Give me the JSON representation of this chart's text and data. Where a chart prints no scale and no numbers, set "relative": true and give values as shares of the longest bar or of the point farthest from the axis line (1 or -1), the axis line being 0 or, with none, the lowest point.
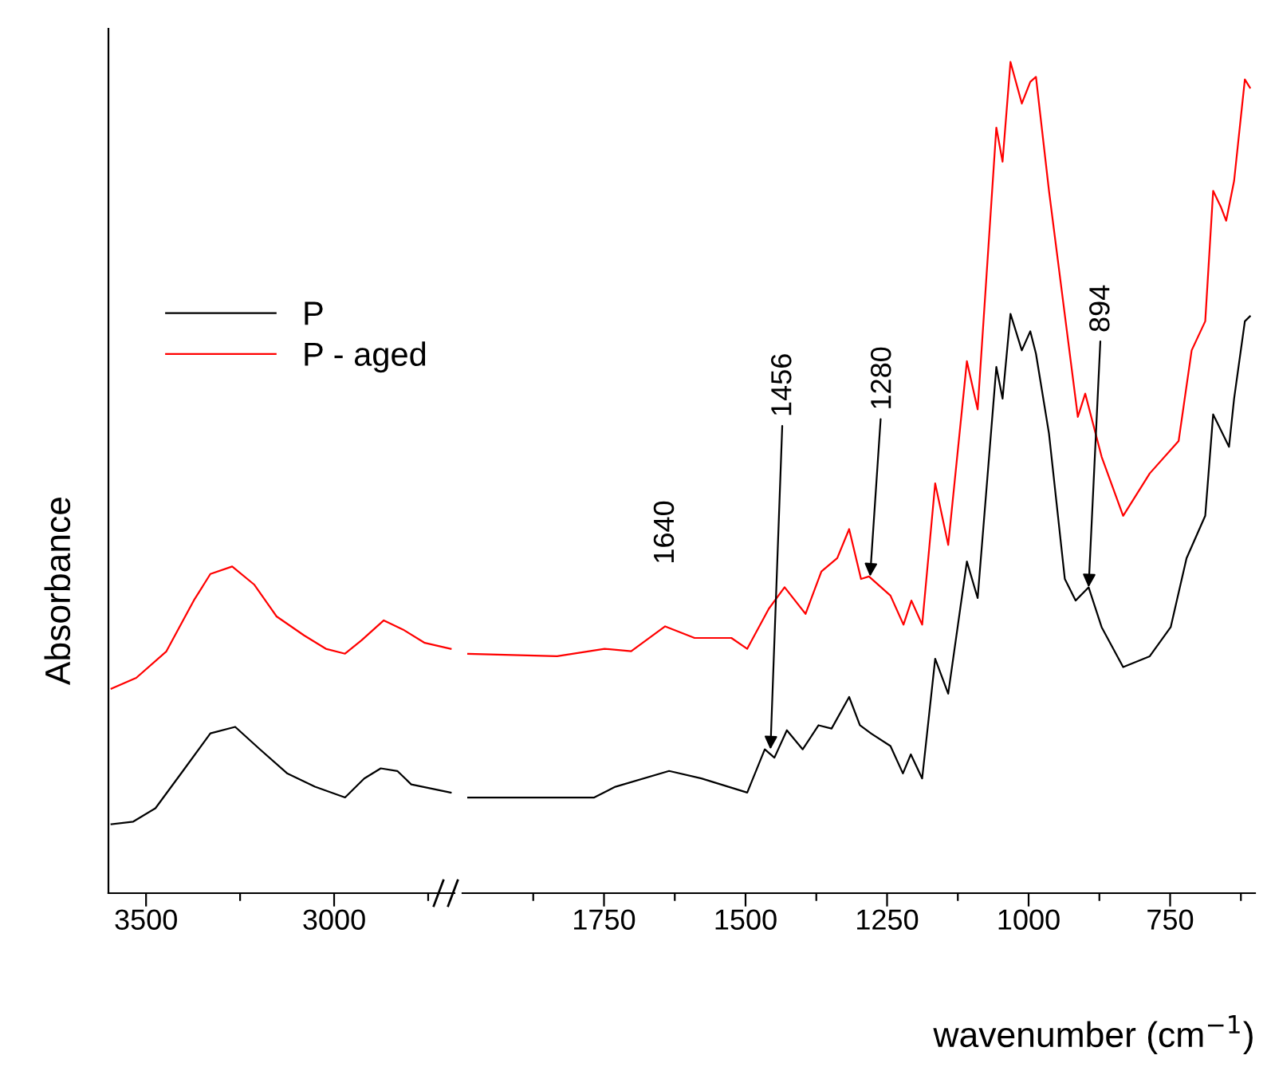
{
  "chart_data": [
    {
      "type": "line",
      "relative": true,
      "ylabel": "Absorbance",
      "legend": "top left",
      "marker": "none",
      "line_style": "solid",
      "xlim": [
        3600,
        2680
      ],
      "xticks": [
        3500,
        {
          "value": 3250,
          "label": null
        },
        3000,
        {
          "value": 2750,
          "label": null
        }
      ],
      "series": [
        {
          "name": "P",
          "color": "#000000",
          "x": [
            3592,
            3534,
            3475,
            3402,
            3329,
            3263,
            3197,
            3124,
            3051,
            2971,
            2920,
            2876,
            2832,
            2795,
            2690
          ],
          "values": [
            0.211,
            0.219,
            0.26,
            0.374,
            0.489,
            0.509,
            0.44,
            0.366,
            0.326,
            0.293,
            0.351,
            0.382,
            0.374,
            0.333,
            0.308
          ]
        },
        {
          "name": "P - aged",
          "color": "#ff0000",
          "x": [
            3592,
            3526,
            3446,
            3373,
            3329,
            3271,
            3212,
            3153,
            3080,
            3022,
            2971,
            2927,
            2868,
            2817,
            2759,
            2690
          ],
          "values": [
            0.626,
            0.659,
            0.74,
            0.896,
            0.977,
            1.0,
            0.944,
            0.847,
            0.789,
            0.748,
            0.733,
            0.774,
            0.835,
            0.807,
            0.766,
            0.748
          ]
        }
      ]
    },
    {
      "type": "line",
      "relative": true,
      "xlabel": "wavenumber (cm$^{−1}$)",
      "marker": "none",
      "line_style": "solid",
      "xlim": [
        2000,
        600
      ],
      "xticks": [
        {
          "value": 1875,
          "label": null
        },
        1750,
        {
          "value": 1625,
          "label": null
        },
        1500,
        {
          "value": 1375,
          "label": null
        },
        1250,
        {
          "value": 1125,
          "label": null
        },
        1000,
        {
          "value": 875,
          "label": null
        },
        750,
        {
          "value": 625,
          "label": null
        }
      ],
      "annotations": [
        {
          "text": "1640",
          "x": 1640,
          "y": 0.321
        },
        {
          "text": "1456",
          "x": 1456,
          "y": 0.173
        },
        {
          "text": "1280",
          "x": 1280,
          "y": 0.381
        },
        {
          "text": "894",
          "x": 894,
          "y": 0.368
        }
      ],
      "series": [
        {
          "color": "#000000",
          "x": [
            1990,
            1768,
            1730,
            1635,
            1578,
            1497,
            1466,
            1449,
            1427,
            1399,
            1371,
            1348,
            1317,
            1298,
            1278,
            1244,
            1222,
            1208,
            1188,
            1165,
            1142,
            1109,
            1090,
            1057,
            1046,
            1032,
            1012,
            997,
            987,
            964,
            936,
            917,
            894,
            871,
            833,
            786,
            749,
            721,
            688,
            674,
            646,
            637,
            618,
            609
          ],
          "values": [
            0.115,
            0.115,
            0.128,
            0.147,
            0.138,
            0.121,
            0.173,
            0.163,
            0.196,
            0.173,
            0.202,
            0.198,
            0.236,
            0.202,
            0.192,
            0.177,
            0.144,
            0.167,
            0.138,
            0.282,
            0.24,
            0.399,
            0.355,
            0.633,
            0.595,
            0.697,
            0.653,
            0.676,
            0.649,
            0.553,
            0.378,
            0.352,
            0.368,
            0.32,
            0.272,
            0.285,
            0.32,
            0.403,
            0.454,
            0.576,
            0.537,
            0.595,
            0.688,
            0.694
          ]
        },
        {
          "color": "#ff0000",
          "x": [
            1990,
            1833,
            1749,
            1702,
            1642,
            1590,
            1525,
            1497,
            1459,
            1431,
            1394,
            1366,
            1338,
            1317,
            1296,
            1282,
            1244,
            1221,
            1207,
            1188,
            1165,
            1142,
            1109,
            1090,
            1057,
            1046,
            1032,
            1012,
            997,
            987,
            964,
            913,
            900,
            871,
            833,
            786,
            735,
            712,
            688,
            674,
            660,
            651,
            637,
            618,
            609
          ],
          "values": [
            0.288,
            0.285,
            0.294,
            0.291,
            0.321,
            0.307,
            0.307,
            0.294,
            0.342,
            0.368,
            0.336,
            0.387,
            0.403,
            0.438,
            0.378,
            0.381,
            0.358,
            0.323,
            0.352,
            0.323,
            0.493,
            0.419,
            0.64,
            0.582,
            0.921,
            0.88,
            1.0,
            0.95,
            0.976,
            0.982,
            0.845,
            0.573,
            0.601,
            0.525,
            0.454,
            0.505,
            0.544,
            0.653,
            0.688,
            0.845,
            0.825,
            0.809,
            0.857,
            0.979,
            0.969
          ]
        }
      ]
    }
  ]
}
